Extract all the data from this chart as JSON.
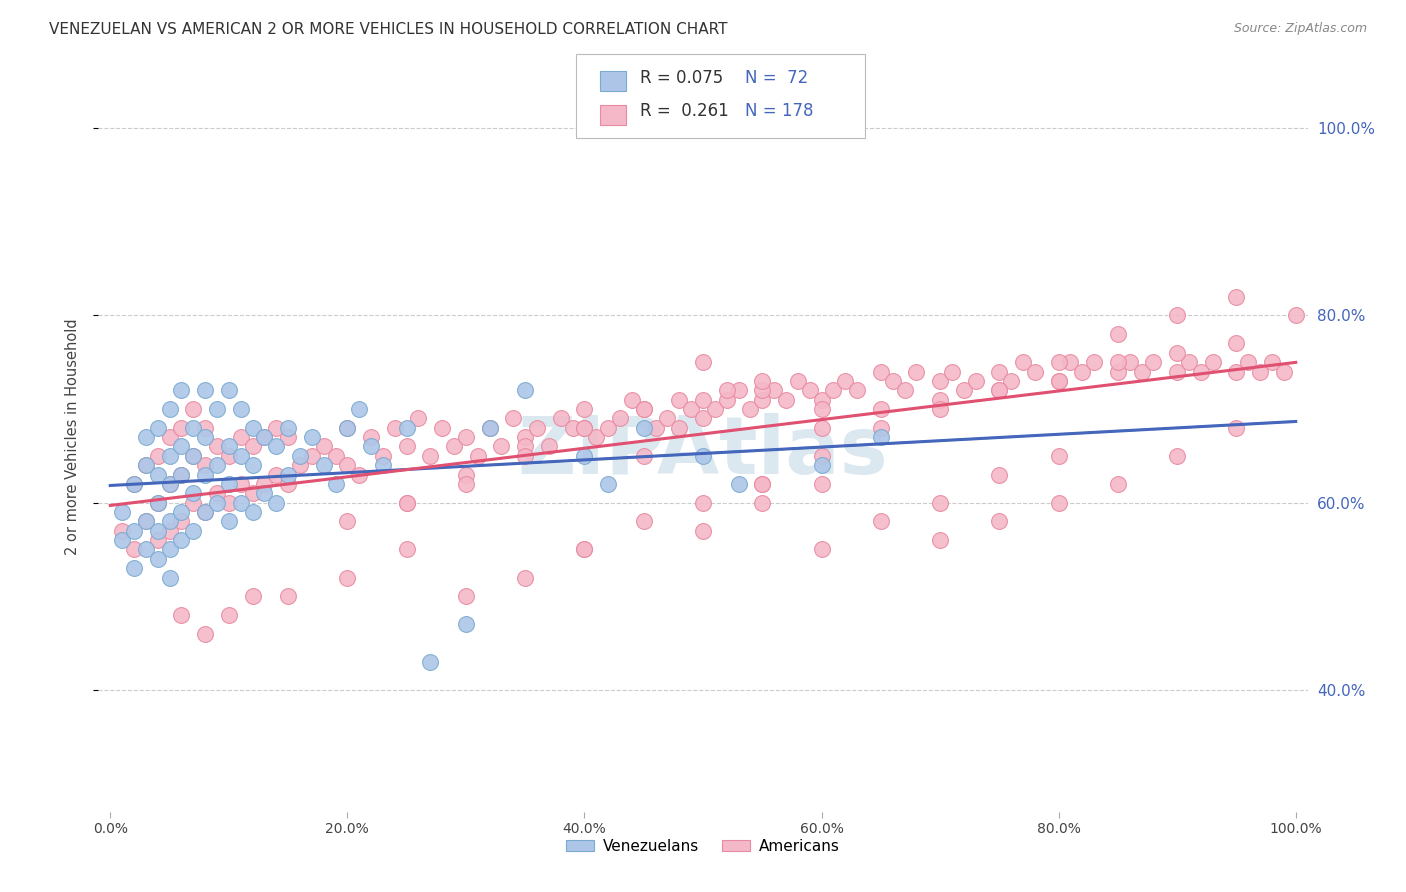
{
  "title": "VENEZUELAN VS AMERICAN 2 OR MORE VEHICLES IN HOUSEHOLD CORRELATION CHART",
  "source": "Source: ZipAtlas.com",
  "ylabel": "2 or more Vehicles in Household",
  "legend_label1": "Venezuelans",
  "legend_label2": "Americans",
  "color_blue_fill": "#adc6e8",
  "color_blue_edge": "#7aaad0",
  "color_pink_fill": "#f4b8c8",
  "color_pink_edge": "#e88aa0",
  "color_line_blue": "#4466bb",
  "color_line_pink": "#e05070",
  "watermark_color": "#dce8f0",
  "background_color": "#ffffff",
  "grid_color": "#cccccc",
  "xlim": [
    -0.01,
    1.01
  ],
  "ylim": [
    0.27,
    1.07
  ],
  "yticks": [
    0.4,
    0.6,
    0.8,
    1.0
  ],
  "ytick_labels": [
    "40.0%",
    "60.0%",
    "80.0%",
    "100.0%"
  ],
  "xticks": [
    0.0,
    0.2,
    0.4,
    0.6,
    0.8,
    1.0
  ],
  "xtick_labels": [
    "0.0%",
    "20.0%",
    "40.0%",
    "60.0%",
    "80.0%",
    "100.0%"
  ],
  "venezuelan_x": [
    0.01,
    0.01,
    0.02,
    0.02,
    0.02,
    0.03,
    0.03,
    0.03,
    0.03,
    0.04,
    0.04,
    0.04,
    0.04,
    0.04,
    0.05,
    0.05,
    0.05,
    0.05,
    0.05,
    0.05,
    0.06,
    0.06,
    0.06,
    0.06,
    0.06,
    0.07,
    0.07,
    0.07,
    0.07,
    0.08,
    0.08,
    0.08,
    0.08,
    0.09,
    0.09,
    0.09,
    0.1,
    0.1,
    0.1,
    0.1,
    0.11,
    0.11,
    0.11,
    0.12,
    0.12,
    0.12,
    0.13,
    0.13,
    0.14,
    0.14,
    0.15,
    0.15,
    0.16,
    0.17,
    0.18,
    0.19,
    0.2,
    0.21,
    0.22,
    0.23,
    0.25,
    0.27,
    0.3,
    0.32,
    0.35,
    0.4,
    0.42,
    0.45,
    0.5,
    0.53,
    0.6,
    0.65
  ],
  "venezuelan_y": [
    0.56,
    0.59,
    0.53,
    0.57,
    0.62,
    0.55,
    0.58,
    0.64,
    0.67,
    0.54,
    0.57,
    0.6,
    0.63,
    0.68,
    0.52,
    0.55,
    0.58,
    0.62,
    0.65,
    0.7,
    0.56,
    0.59,
    0.63,
    0.66,
    0.72,
    0.57,
    0.61,
    0.65,
    0.68,
    0.59,
    0.63,
    0.67,
    0.72,
    0.6,
    0.64,
    0.7,
    0.58,
    0.62,
    0.66,
    0.72,
    0.6,
    0.65,
    0.7,
    0.59,
    0.64,
    0.68,
    0.61,
    0.67,
    0.6,
    0.66,
    0.63,
    0.68,
    0.65,
    0.67,
    0.64,
    0.62,
    0.68,
    0.7,
    0.66,
    0.64,
    0.68,
    0.43,
    0.47,
    0.68,
    0.72,
    0.65,
    0.62,
    0.68,
    0.65,
    0.62,
    0.64,
    0.67
  ],
  "american_x": [
    0.01,
    0.02,
    0.02,
    0.03,
    0.03,
    0.04,
    0.04,
    0.04,
    0.05,
    0.05,
    0.05,
    0.06,
    0.06,
    0.06,
    0.07,
    0.07,
    0.07,
    0.08,
    0.08,
    0.08,
    0.09,
    0.09,
    0.1,
    0.1,
    0.11,
    0.11,
    0.12,
    0.12,
    0.13,
    0.13,
    0.14,
    0.14,
    0.15,
    0.15,
    0.16,
    0.17,
    0.18,
    0.19,
    0.2,
    0.2,
    0.21,
    0.22,
    0.23,
    0.24,
    0.25,
    0.26,
    0.27,
    0.28,
    0.29,
    0.3,
    0.31,
    0.32,
    0.33,
    0.34,
    0.35,
    0.36,
    0.37,
    0.38,
    0.39,
    0.4,
    0.41,
    0.42,
    0.43,
    0.44,
    0.45,
    0.46,
    0.47,
    0.48,
    0.49,
    0.5,
    0.51,
    0.52,
    0.53,
    0.54,
    0.55,
    0.56,
    0.57,
    0.58,
    0.59,
    0.6,
    0.61,
    0.62,
    0.63,
    0.65,
    0.66,
    0.67,
    0.68,
    0.7,
    0.71,
    0.72,
    0.73,
    0.75,
    0.76,
    0.77,
    0.78,
    0.8,
    0.81,
    0.82,
    0.83,
    0.85,
    0.86,
    0.87,
    0.88,
    0.9,
    0.91,
    0.92,
    0.93,
    0.95,
    0.96,
    0.97,
    0.98,
    0.99,
    1.0,
    0.5,
    0.55,
    0.48,
    0.52,
    0.6,
    0.65,
    0.7,
    0.75,
    0.8,
    0.85,
    0.9,
    0.95,
    0.4,
    0.45,
    0.5,
    0.55,
    0.6,
    0.35,
    0.4,
    0.45,
    0.3,
    0.35,
    0.25,
    0.3,
    0.2,
    0.25,
    0.55,
    0.6,
    0.65,
    0.7,
    0.75,
    0.8,
    0.85,
    0.9,
    0.95,
    0.7,
    0.75,
    0.8,
    0.85,
    0.9,
    0.95,
    0.6,
    0.65,
    0.7,
    0.75,
    0.8,
    0.5,
    0.55,
    0.6,
    0.4,
    0.45,
    0.5,
    0.55,
    0.35,
    0.4,
    0.3,
    0.15,
    0.2,
    0.25,
    0.1,
    0.12,
    0.08,
    0.06
  ],
  "american_y": [
    0.57,
    0.55,
    0.62,
    0.58,
    0.64,
    0.56,
    0.6,
    0.65,
    0.57,
    0.62,
    0.67,
    0.58,
    0.63,
    0.68,
    0.6,
    0.65,
    0.7,
    0.59,
    0.64,
    0.68,
    0.61,
    0.66,
    0.6,
    0.65,
    0.62,
    0.67,
    0.61,
    0.66,
    0.62,
    0.67,
    0.63,
    0.68,
    0.62,
    0.67,
    0.64,
    0.65,
    0.66,
    0.65,
    0.64,
    0.68,
    0.63,
    0.67,
    0.65,
    0.68,
    0.66,
    0.69,
    0.65,
    0.68,
    0.66,
    0.67,
    0.65,
    0.68,
    0.66,
    0.69,
    0.67,
    0.68,
    0.66,
    0.69,
    0.68,
    0.7,
    0.67,
    0.68,
    0.69,
    0.71,
    0.7,
    0.68,
    0.69,
    0.71,
    0.7,
    0.69,
    0.7,
    0.71,
    0.72,
    0.7,
    0.71,
    0.72,
    0.71,
    0.73,
    0.72,
    0.71,
    0.72,
    0.73,
    0.72,
    0.74,
    0.73,
    0.72,
    0.74,
    0.73,
    0.74,
    0.72,
    0.73,
    0.74,
    0.73,
    0.75,
    0.74,
    0.73,
    0.75,
    0.74,
    0.75,
    0.74,
    0.75,
    0.74,
    0.75,
    0.74,
    0.75,
    0.74,
    0.75,
    0.74,
    0.75,
    0.74,
    0.75,
    0.74,
    0.8,
    0.75,
    0.72,
    0.68,
    0.72,
    0.68,
    0.7,
    0.71,
    0.72,
    0.73,
    0.75,
    0.76,
    0.77,
    0.68,
    0.7,
    0.71,
    0.73,
    0.7,
    0.66,
    0.68,
    0.65,
    0.63,
    0.65,
    0.6,
    0.62,
    0.58,
    0.6,
    0.62,
    0.65,
    0.68,
    0.7,
    0.72,
    0.75,
    0.78,
    0.8,
    0.82,
    0.56,
    0.58,
    0.6,
    0.62,
    0.65,
    0.68,
    0.55,
    0.58,
    0.6,
    0.63,
    0.65,
    0.57,
    0.6,
    0.62,
    0.55,
    0.58,
    0.6,
    0.62,
    0.52,
    0.55,
    0.5,
    0.5,
    0.52,
    0.55,
    0.48,
    0.5,
    0.46,
    0.48
  ]
}
